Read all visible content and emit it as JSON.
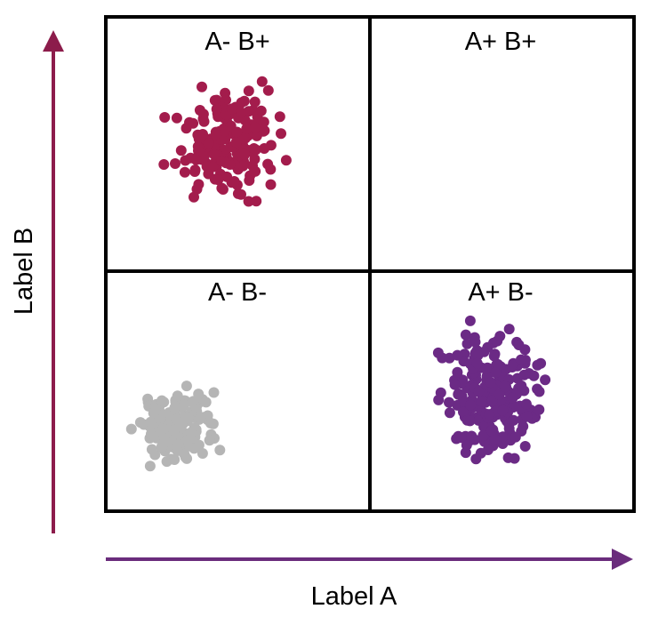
{
  "quadrants": {
    "top_left": "A- B+",
    "top_right": "A+ B+",
    "bottom_left": "A- B-",
    "bottom_right": "A+ B-"
  },
  "axes": {
    "x_label": "Label A",
    "y_label": "Label B"
  }
}
